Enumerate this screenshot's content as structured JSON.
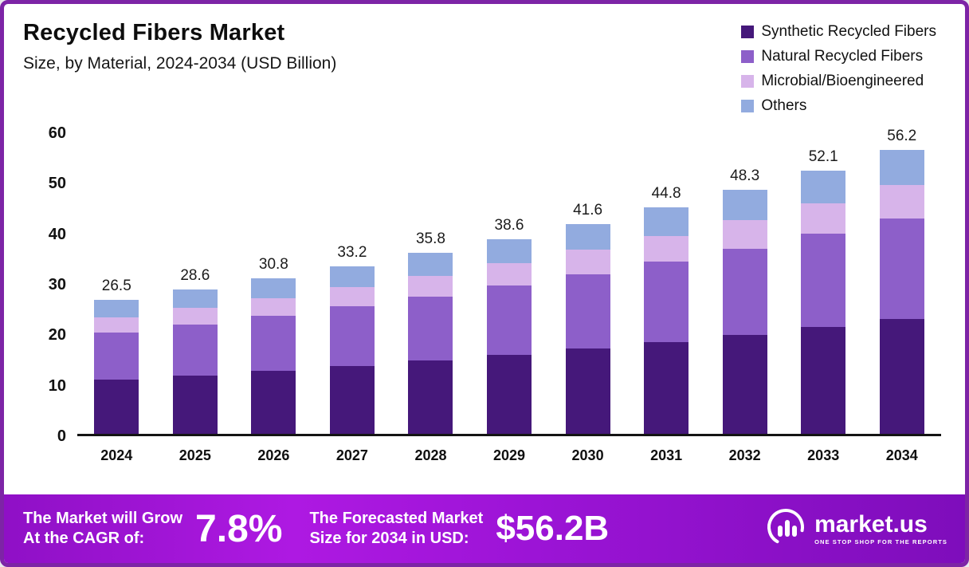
{
  "header": {
    "title": "Recycled Fibers Market",
    "subtitle": "Size, by Material, 2024-2034 (USD Billion)"
  },
  "chart_data": {
    "type": "bar",
    "stacked": true,
    "title": "Recycled Fibers Market Size, by Material, 2024-2034 (USD Billion)",
    "xlabel": "",
    "ylabel": "",
    "ylim": [
      0,
      60
    ],
    "yticks": [
      0,
      10,
      20,
      30,
      40,
      50,
      60
    ],
    "grid": false,
    "legend_position": "top-right",
    "categories": [
      "2024",
      "2025",
      "2026",
      "2027",
      "2028",
      "2029",
      "2030",
      "2031",
      "2032",
      "2033",
      "2034"
    ],
    "totals": [
      26.5,
      28.6,
      30.8,
      33.2,
      35.8,
      38.6,
      41.6,
      44.8,
      48.3,
      52.1,
      56.2
    ],
    "series": [
      {
        "name": "Synthetic Recycled Fibers",
        "color": "#45187a",
        "values": [
          10.7,
          11.6,
          12.5,
          13.5,
          14.5,
          15.7,
          16.9,
          18.2,
          19.6,
          21.1,
          22.8
        ]
      },
      {
        "name": "Natural Recycled Fibers",
        "color": "#8d5fc9",
        "values": [
          9.4,
          10.1,
          10.9,
          11.8,
          12.7,
          13.7,
          14.7,
          15.9,
          17.1,
          18.5,
          19.9
        ]
      },
      {
        "name": "Microbial/Bioengineered",
        "color": "#d7b4ea",
        "values": [
          3.0,
          3.3,
          3.5,
          3.8,
          4.1,
          4.4,
          4.8,
          5.1,
          5.6,
          6.0,
          6.5
        ]
      },
      {
        "name": "Others",
        "color": "#92abdf",
        "values": [
          3.4,
          3.6,
          3.9,
          4.1,
          4.5,
          4.8,
          5.2,
          5.6,
          6.0,
          6.5,
          7.0
        ]
      }
    ]
  },
  "banner": {
    "cagr_label_line1": "The Market will Grow",
    "cagr_label_line2": "At the CAGR of:",
    "cagr_value": "7.8%",
    "forecast_label_line1": "The Forecasted Market",
    "forecast_label_line2": "Size for 2034 in USD:",
    "forecast_value": "$56.2B",
    "brand": {
      "name": "market.us",
      "tagline": "ONE STOP SHOP FOR THE REPORTS"
    }
  },
  "colors": {
    "border": "#7d24a6",
    "axis": "#141414",
    "banner_gradient_start": "#8f10c6",
    "banner_gradient_end": "#7e0dbb"
  }
}
